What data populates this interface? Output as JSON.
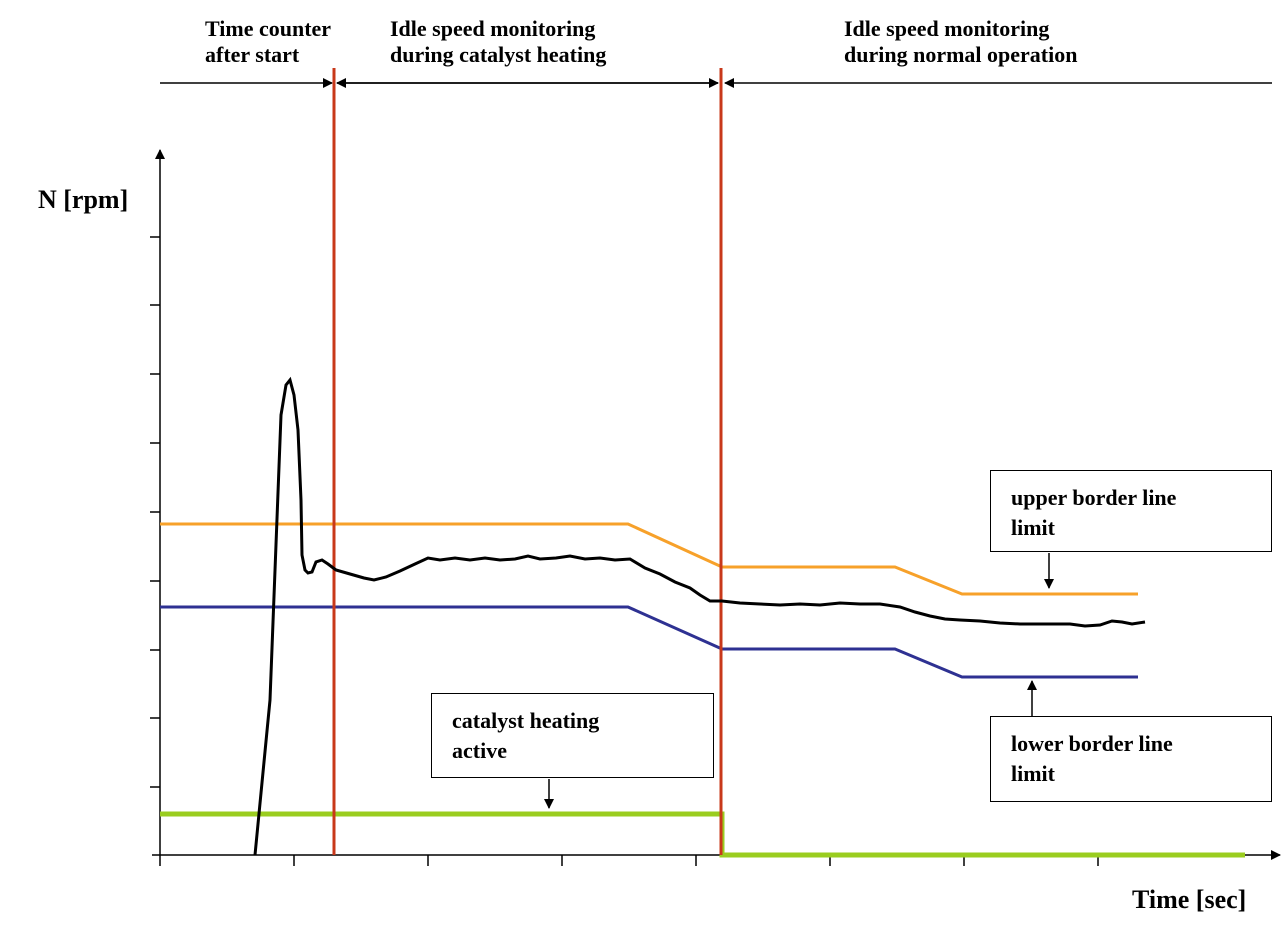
{
  "phases": [
    {
      "lines": [
        "Time counter",
        "after start"
      ]
    },
    {
      "lines": [
        "Idle speed monitoring",
        "during catalyst heating"
      ]
    },
    {
      "lines": [
        "Idle speed monitoring",
        "during normal operation"
      ]
    }
  ],
  "axes": {
    "y_label": "N [rpm]",
    "x_label": "Time [sec]"
  },
  "callouts": {
    "upper": [
      "upper border line",
      "limit"
    ],
    "lower": [
      "lower border line",
      "limit"
    ],
    "catalyst": [
      "catalyst heating",
      "active"
    ]
  },
  "colors": {
    "upper_limit": "#f7a12a",
    "lower_limit": "#2e3192",
    "phase_marker": "#c8381a",
    "catalyst_signal": "#9acd1f",
    "speed_trace": "#000000"
  }
}
